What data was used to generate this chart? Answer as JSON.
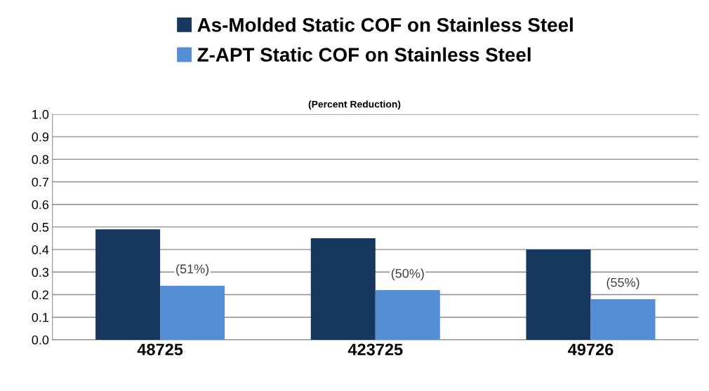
{
  "chart_data": {
    "type": "bar",
    "subtitle": "(Percent Reduction)",
    "categories": [
      "48725",
      "423725",
      "49726"
    ],
    "series": [
      {
        "name": "As-Molded Static COF on Stainless Steel",
        "color": "#17375e",
        "values": [
          0.49,
          0.45,
          0.4
        ]
      },
      {
        "name": "Z-APT Static COF on Stainless Steel",
        "color": "#558ed5",
        "values": [
          0.24,
          0.22,
          0.18
        ]
      }
    ],
    "annotations": [
      {
        "text": "(51%)",
        "x": "48725",
        "y": 0.24
      },
      {
        "text": "(50%)",
        "x": "423725",
        "y": 0.22
      },
      {
        "text": "(55%)",
        "x": "49726",
        "y": 0.18
      }
    ],
    "ylim": [
      0,
      1.0
    ],
    "yticks": [
      {
        "value": 0,
        "label": "0.0"
      },
      {
        "value": 0.1,
        "label": "0.1"
      },
      {
        "value": 0.2,
        "label": "0.2"
      },
      {
        "value": 0.3,
        "label": "0.3"
      },
      {
        "value": 0.4,
        "label": "0.4"
      },
      {
        "value": 0.5,
        "label": "0.5"
      },
      {
        "value": 0.6,
        "label": "0.6"
      },
      {
        "value": 0.7,
        "label": "0.7"
      },
      {
        "value": 0.8,
        "label": "0.8"
      },
      {
        "value": 0.9,
        "label": "0.9"
      },
      {
        "value": 1.0,
        "label": "1.0"
      }
    ],
    "grid": "y",
    "legend": "top"
  }
}
